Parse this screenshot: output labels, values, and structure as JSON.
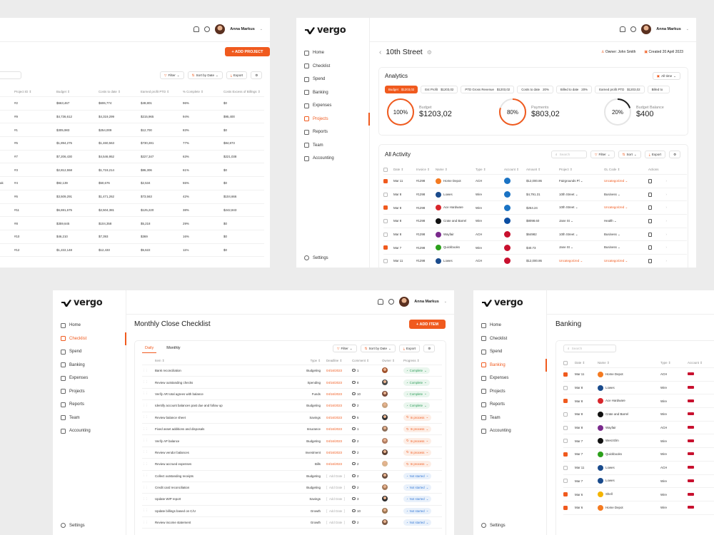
{
  "colors": {
    "accent": "#f05a1e",
    "complete": "#2e9e5a",
    "in_progress": "#f05a1e",
    "not_started": "#3b7ed8"
  },
  "user": {
    "name": "Anna Markus"
  },
  "brand": "vergo",
  "nav": [
    "Home",
    "Checklist",
    "Spend",
    "Banking",
    "Expenses",
    "Projects",
    "Reports",
    "Team",
    "Accounting"
  ],
  "settings_label": "Settings",
  "projects": {
    "add_button": "+ ADD PROJECT",
    "toolbar": {
      "filter": "Filter",
      "sort": "Sort by Date",
      "export": "Export"
    },
    "headers": [
      "Project ID ⇕",
      "Budget ⇕",
      "Costs to date ⇕",
      "Earned profit PTD ⇕",
      "% Complete ⇕",
      "Costs Excess of Billings ⇕"
    ],
    "rows": [
      {
        "label": "",
        "id": "#2",
        "budget": "$663,467",
        "costs": "$606,774",
        "profit": "$49,801",
        "pct": "96%",
        "excess": "$0"
      },
      {
        "label": "",
        "id": "#9",
        "budget": "$4,736,612",
        "costs": "$4,319,299",
        "profit": "$215,965",
        "pct": "94%",
        "excess": "$95,400"
      },
      {
        "label": "",
        "id": "#1",
        "budget": "$305,983",
        "costs": "$254,009",
        "profit": "$12,700",
        "pct": "83%",
        "excess": "$0"
      },
      {
        "label": "",
        "id": "#5",
        "budget": "$1,894,275",
        "costs": "$1,460,563",
        "profit": "$730,281",
        "pct": "77%",
        "excess": "$84,873"
      },
      {
        "label": "",
        "id": "#7",
        "budget": "$7,206,430",
        "costs": "$4,546,952",
        "profit": "$227,347",
        "pct": "63%",
        "excess": "$221,038"
      },
      {
        "label": "",
        "id": "#3",
        "budget": "$2,812,558",
        "costs": "$1,719,214",
        "profit": "$86,306",
        "pct": "61%",
        "excess": "$0"
      },
      {
        "label": "ak",
        "id": "#4",
        "budget": "$92,139",
        "costs": "$50,676",
        "profit": "$2,534",
        "pct": "55%",
        "excess": "$0"
      },
      {
        "label": "",
        "id": "#6",
        "budget": "$3,509,291",
        "costs": "$1,471,262",
        "profit": "$73,563",
        "pct": "42%",
        "excess": "$104,666"
      },
      {
        "label": "",
        "id": "#11",
        "budget": "$6,691,675",
        "costs": "$2,504,381",
        "profit": "$125,220",
        "pct": "38%",
        "excess": "$242,843"
      },
      {
        "label": "",
        "id": "#8",
        "budget": "$359,645",
        "costs": "$104,358",
        "profit": "$5,218",
        "pct": "29%",
        "excess": "$0"
      },
      {
        "label": "",
        "id": "#10",
        "budget": "$46,210",
        "costs": "$7,393",
        "profit": "$369",
        "pct": "16%",
        "excess": "$0"
      },
      {
        "label": "",
        "id": "#12",
        "budget": "$1,222,148",
        "costs": "$12,433",
        "profit": "$5,622",
        "pct": "11%",
        "excess": "$0"
      }
    ]
  },
  "street": {
    "title": "10th Street",
    "owner": "Owner: John Smith",
    "created": "Created 20 April 2023",
    "analytics_title": "Analytics",
    "all_time": "All time",
    "kpis": [
      {
        "label": "Budget",
        "value": "$1203,02",
        "active": true
      },
      {
        "label": "Est Profit",
        "value": "$1203,02"
      },
      {
        "label": "PTD Gross Revenue",
        "value": "$1203,02"
      },
      {
        "label": "Costs to date",
        "value": "20%"
      },
      {
        "label": "Billed to date",
        "value": "20%"
      },
      {
        "label": "Earned profit PTD",
        "value": "$1203,02"
      },
      {
        "label": "Billed to",
        "value": ""
      }
    ],
    "gauges": [
      {
        "pct": "100%",
        "label": "Budget",
        "value": "$1203,02",
        "fill": 1.0
      },
      {
        "pct": "80%",
        "label": "Payments",
        "value": "$803,02",
        "fill": 0.8
      },
      {
        "pct": "20%",
        "label": "Budget Balance",
        "value": "$400",
        "fill": 0.2
      }
    ],
    "activity_title": "All Activity",
    "search_placeholder": "Search",
    "toolbar": {
      "filter": "Filter",
      "sort": "Sort",
      "export": "Export"
    },
    "headers": [
      "Date ⇕",
      "Invoice ⇕",
      "Name ⇕",
      "Type ⇕",
      "Account ⇕",
      "Amount ⇕",
      "Project ⇕",
      "GL Code ⇕",
      "Actions"
    ],
    "rows": [
      {
        "checked": true,
        "date": "Mar 11",
        "inv": "#1298",
        "name": "Home Depot",
        "logo": "#f47a20",
        "type": "ACH",
        "amount": "$12,000.86",
        "project": "Fairgrounds Pl ⌄",
        "gl": "Uncategorized ⌄",
        "gl_o": true,
        "proj_o": false
      },
      {
        "checked": false,
        "date": "Mar 8",
        "inv": "#1298",
        "name": "Lowes",
        "logo": "#1a4b8c",
        "type": "Wire",
        "amount": "$4,791.31",
        "project": "10th Street ⌄",
        "gl": "Business ⌄",
        "gl_o": false,
        "proj_o": false
      },
      {
        "checked": true,
        "date": "Mar 8",
        "inv": "#1298",
        "name": "Ace Hardware",
        "logo": "#d8262c",
        "type": "Wire",
        "amount": "$264.24",
        "project": "10th Street ⌄",
        "gl": "Uncategorized ⌄",
        "gl_o": true,
        "proj_o": false
      },
      {
        "checked": false,
        "date": "Mar 8",
        "inv": "#1298",
        "name": "Crate and Barrel",
        "logo": "#111111",
        "type": "Wire",
        "amount": "$8098.60",
        "project": "Jane St ⌄",
        "gl": "Health ⌄",
        "gl_o": false,
        "proj_o": false
      },
      {
        "checked": false,
        "date": "Mar 8",
        "inv": "#1298",
        "name": "Wayfair",
        "logo": "#7a2a8c",
        "type": "ACH",
        "amount": "$64982",
        "project": "10th Street ⌄",
        "gl": "Business ⌄",
        "gl_o": false,
        "proj_o": false
      },
      {
        "checked": true,
        "date": "Mar 7",
        "inv": "#1298",
        "name": "Quickbooks",
        "logo": "#2ca01c",
        "type": "Wire",
        "amount": "$40.73",
        "project": "Jane St ⌄",
        "gl": "Business ⌄",
        "gl_o": false,
        "proj_o": false
      },
      {
        "checked": false,
        "date": "Mar 11",
        "inv": "#1298",
        "name": "Lowes",
        "logo": "#1a4b8c",
        "type": "ACH",
        "amount": "$12,000.86",
        "project": "Uncategorized ⌄",
        "gl": "Uncategorized ⌄",
        "gl_o": true,
        "proj_o": true
      }
    ]
  },
  "checklist": {
    "title": "Monthly Close Checklist",
    "add_button": "+ ADD ITEM",
    "tabs": [
      "Daily",
      "Monthly"
    ],
    "toolbar": {
      "filter": "Filter",
      "sort": "Sort by Date",
      "export": "Export"
    },
    "headers": [
      "Item ⇕",
      "Type ⇕",
      "Deadline ⇕",
      "Comment ⇕",
      "Owner ⇕",
      "Progress ⇕"
    ],
    "rows": [
      {
        "item": "Bank reconciliation",
        "type": "Budgeting",
        "deadline": "04/16/2023",
        "comment": "1",
        "status": "Complete",
        "cls": "b-complete"
      },
      {
        "item": "Review outstanding checks",
        "type": "Spending",
        "deadline": "04/16/2023",
        "comment": "8",
        "status": "Complete",
        "cls": "b-complete"
      },
      {
        "item": "Verify AR total agrees with balance",
        "type": "Funds",
        "deadline": "04/16/2023",
        "comment": "10",
        "status": "Complete",
        "cls": "b-complete"
      },
      {
        "item": "Identify account balances past due and follow up",
        "type": "Budgeting",
        "deadline": "04/16/2023",
        "comment": "2",
        "status": "Complete",
        "cls": "b-complete"
      },
      {
        "item": "Review balance sheet",
        "type": "Savings",
        "deadline": "04/16/2023",
        "comment": "5",
        "status": "In process",
        "cls": "b-progress"
      },
      {
        "item": "Fixed asset additions and disposals",
        "type": "Insurance",
        "deadline": "04/16/2023",
        "comment": "1",
        "status": "In process",
        "cls": "b-progress"
      },
      {
        "item": "Verify AP balance",
        "type": "Budgeting",
        "deadline": "04/16/2023",
        "comment": "2",
        "status": "In process",
        "cls": "b-progress"
      },
      {
        "item": "Review vendor balances",
        "type": "Investment",
        "deadline": "04/16/2023",
        "comment": "2",
        "status": "In process",
        "cls": "b-progress"
      },
      {
        "item": "Review accrued expenses",
        "type": "Bills",
        "deadline": "04/16/2023",
        "comment": "2",
        "status": "In process",
        "cls": "b-progress"
      },
      {
        "item": "Collect outstanding receipts",
        "type": "Budgeting",
        "deadline": "Add Date",
        "comment": "2",
        "status": "Not started",
        "cls": "b-notstarted"
      },
      {
        "item": "Credit card reconciliation",
        "type": "Budgeting",
        "deadline": "Add Date",
        "comment": "2",
        "status": "Not started",
        "cls": "b-notstarted"
      },
      {
        "item": "Update WIP report",
        "type": "Savings",
        "deadline": "Add Date",
        "comment": "3",
        "status": "Not started",
        "cls": "b-notstarted"
      },
      {
        "item": "Update billings based on C/U",
        "type": "Growth",
        "deadline": "Add Date",
        "comment": "10",
        "status": "Not started",
        "cls": "b-notstarted"
      },
      {
        "item": "Review income statement",
        "type": "Growth",
        "deadline": "Add Date",
        "comment": "2",
        "status": "Not started",
        "cls": "b-notstarted"
      }
    ]
  },
  "banking": {
    "title": "Banking",
    "search_placeholder": "Search",
    "headers": [
      "Date ⇕",
      "Name ⇕",
      "Type ⇕",
      "Account ⇕"
    ],
    "rows": [
      {
        "checked": true,
        "date": "Mar 11",
        "name": "Home Depot",
        "logo": "#f47a20",
        "type": "ACH"
      },
      {
        "checked": false,
        "date": "Mar 8",
        "name": "Lowes",
        "logo": "#1a4b8c",
        "type": "Wire"
      },
      {
        "checked": true,
        "date": "Mar 8",
        "name": "Ace Hardware",
        "logo": "#d8262c",
        "type": "Wire"
      },
      {
        "checked": false,
        "date": "Mar 8",
        "name": "Crate and Barrel",
        "logo": "#111111",
        "type": "Wire"
      },
      {
        "checked": false,
        "date": "Mar 8",
        "name": "Wayfair",
        "logo": "#7a2a8c",
        "type": "ACH"
      },
      {
        "checked": false,
        "date": "Mar 7",
        "name": "West Elm",
        "logo": "#111111",
        "type": "Wire"
      },
      {
        "checked": true,
        "date": "Mar 7",
        "name": "Quickbooks",
        "logo": "#2ca01c",
        "type": "Wire"
      },
      {
        "checked": false,
        "date": "Mar 11",
        "name": "Lowes",
        "logo": "#1a4b8c",
        "type": "ACH"
      },
      {
        "checked": false,
        "date": "Mar 7",
        "name": "Lowes",
        "logo": "#1a4b8c",
        "type": "Wire"
      },
      {
        "checked": true,
        "date": "Mar 6",
        "name": "Shell",
        "logo": "#f4b400",
        "type": "Wire"
      },
      {
        "checked": true,
        "date": "Mar 6",
        "name": "Home Depot",
        "logo": "#f47a20",
        "type": "Wire"
      }
    ]
  }
}
